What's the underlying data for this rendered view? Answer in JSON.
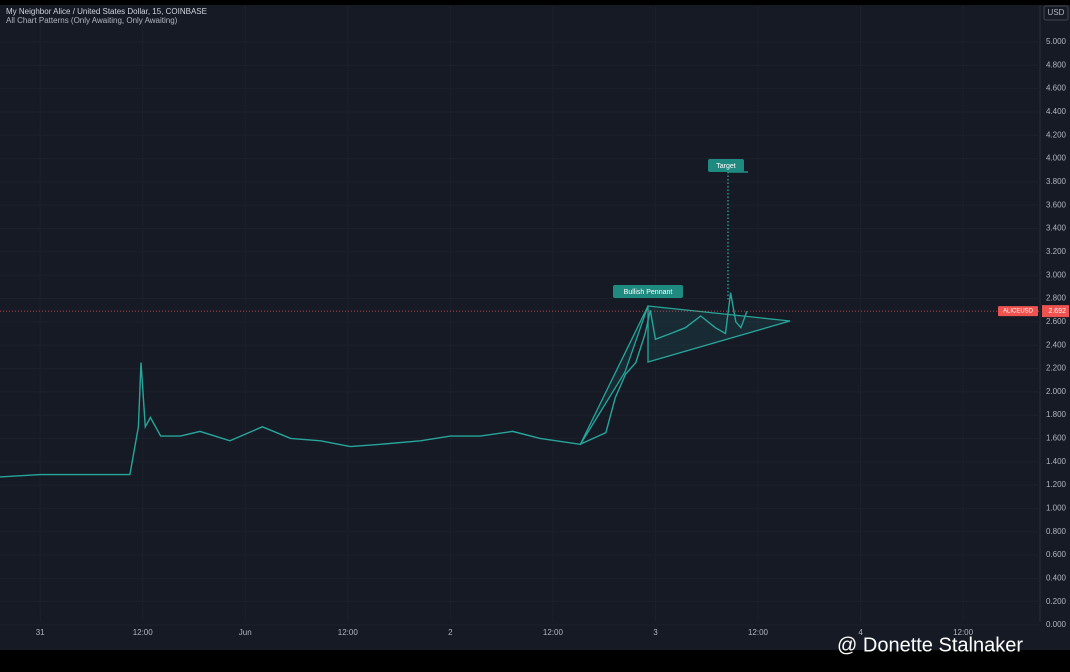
{
  "header": {
    "title": "My Neighbor Alice / United States Dollar, 15, COINBASE",
    "indicator": "All Chart Patterns (Only Awaiting, Only Awaiting)",
    "currency": "USD"
  },
  "watermark": "@ Donette Stalnaker",
  "chart_data": {
    "type": "line",
    "x": [
      -4.7,
      0,
      10.5,
      11.5,
      11.8,
      12.3,
      12.9,
      14.1,
      16.4,
      18.7,
      22.2,
      26.0,
      29.3,
      32.8,
      36.3,
      39.8,
      44.5,
      48.0,
      51.5,
      55.3,
      58.5,
      63.2,
      66.2,
      67.3,
      68.5,
      69.7,
      70.8,
      71.4,
      72.0,
      73.8,
      75.5,
      77.3,
      79.0,
      80.2,
      80.8,
      81.4,
      82.0,
      82.7
    ],
    "series": [
      {
        "name": "ALICEUSD",
        "color": "#26a69a",
        "values": [
          1.27,
          1.29,
          1.29,
          1.7,
          2.25,
          1.7,
          1.78,
          1.62,
          1.62,
          1.66,
          1.58,
          1.7,
          1.6,
          1.58,
          1.53,
          1.55,
          1.58,
          1.62,
          1.62,
          1.66,
          1.6,
          1.55,
          1.65,
          1.95,
          2.15,
          2.25,
          2.5,
          2.7,
          2.45,
          2.5,
          2.55,
          2.65,
          2.55,
          2.5,
          2.85,
          2.6,
          2.55,
          2.69
        ]
      }
    ],
    "last_price": 2.692,
    "annotations": [
      "Bullish Pennant",
      "Target"
    ],
    "xlim": [
      -4.7,
      117
    ],
    "ylim": [
      0,
      5
    ],
    "xticks": [
      {
        "value": 0,
        "label": "31"
      },
      {
        "value": 12,
        "label": "12:00"
      },
      {
        "value": 24,
        "label": "Jun"
      },
      {
        "value": 36,
        "label": "12:00"
      },
      {
        "value": 48,
        "label": "2"
      },
      {
        "value": 60,
        "label": "12:00"
      },
      {
        "value": 72,
        "label": "3"
      },
      {
        "value": 84,
        "label": "12:00"
      },
      {
        "value": 96,
        "label": "4"
      },
      {
        "value": 108,
        "label": "12:00"
      }
    ],
    "yticks": [
      {
        "value": 0,
        "label": "0.000"
      },
      {
        "value": 0.2,
        "label": "0.200"
      },
      {
        "value": 0.4,
        "label": "0.400"
      },
      {
        "value": 0.6,
        "label": "0.600"
      },
      {
        "value": 0.8,
        "label": "0.800"
      },
      {
        "value": 1,
        "label": "1.000"
      },
      {
        "value": 1.2,
        "label": "1.200"
      },
      {
        "value": 1.4,
        "label": "1.400"
      },
      {
        "value": 1.6,
        "label": "1.600"
      },
      {
        "value": 1.8,
        "label": "1.800"
      },
      {
        "value": 2,
        "label": "2.000"
      },
      {
        "value": 2.2,
        "label": "2.200"
      },
      {
        "value": 2.4,
        "label": "2.400"
      },
      {
        "value": 2.6,
        "label": "2.600"
      },
      {
        "value": 2.8,
        "label": "2.800"
      },
      {
        "value": 3,
        "label": "3.000"
      },
      {
        "value": 3.2,
        "label": "3.200"
      },
      {
        "value": 3.4,
        "label": "3.400"
      },
      {
        "value": 3.6,
        "label": "3.600"
      },
      {
        "value": 3.8,
        "label": "3.800"
      },
      {
        "value": 4,
        "label": "4.000"
      },
      {
        "value": 4.2,
        "label": "4.200"
      },
      {
        "value": 4.4,
        "label": "4.400"
      },
      {
        "value": 4.6,
        "label": "4.600"
      },
      {
        "value": 4.8,
        "label": "4.800"
      },
      {
        "value": 5,
        "label": "5.000"
      }
    ],
    "grid": true
  }
}
